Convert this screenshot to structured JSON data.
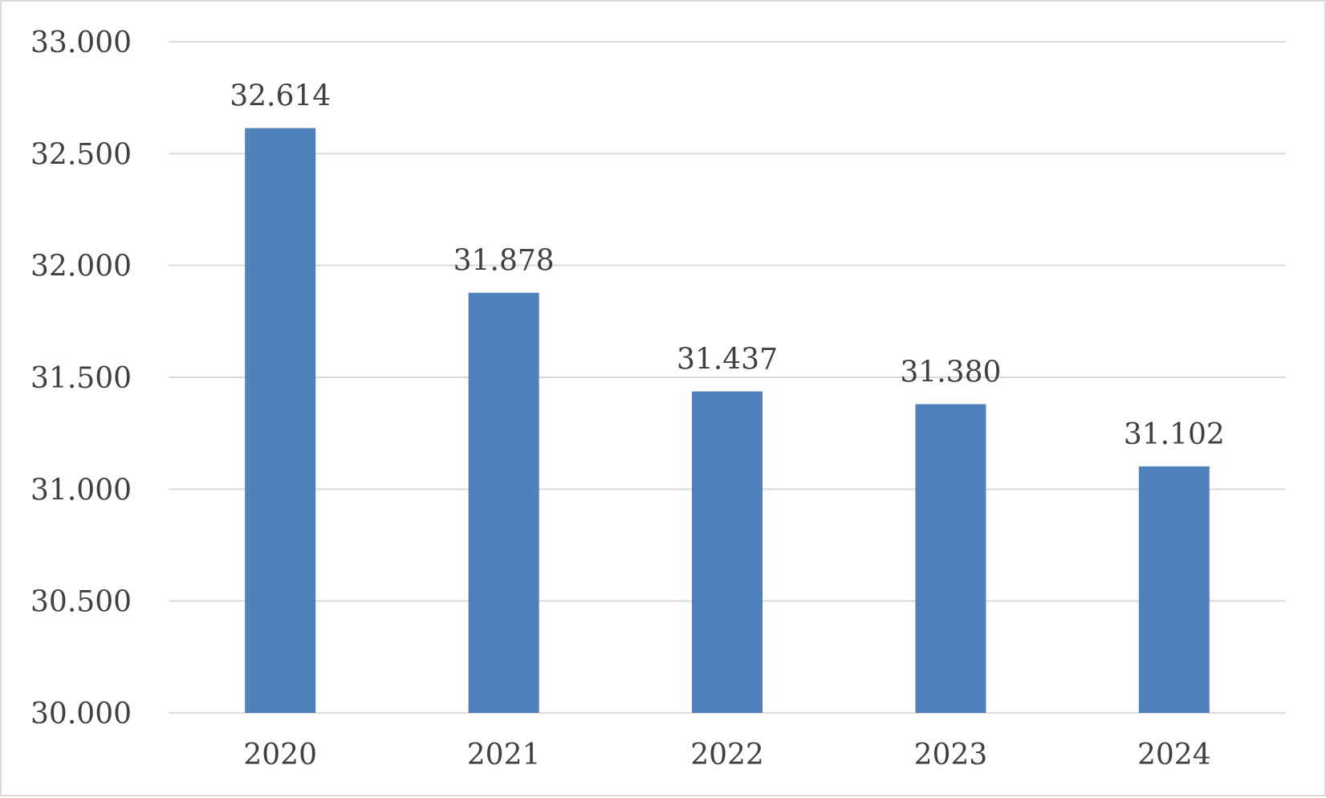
{
  "chart_data": {
    "type": "bar",
    "categories": [
      "2020",
      "2021",
      "2022",
      "2023",
      "2024"
    ],
    "values": [
      32614,
      31878,
      31437,
      31380,
      31102
    ],
    "value_labels": [
      "32.614",
      "31.878",
      "31.437",
      "31.380",
      "31.102"
    ],
    "title": "",
    "xlabel": "",
    "ylabel": "",
    "ylim": [
      30000,
      33000
    ],
    "y_ticks": [
      30000,
      30500,
      31000,
      31500,
      32000,
      32500,
      33000
    ],
    "y_tick_labels": [
      "30.000",
      "30.500",
      "31.000",
      "31.500",
      "32.000",
      "32.500",
      "33.000"
    ],
    "grid": true,
    "legend": "none",
    "bar_color": "#4f81bd"
  }
}
